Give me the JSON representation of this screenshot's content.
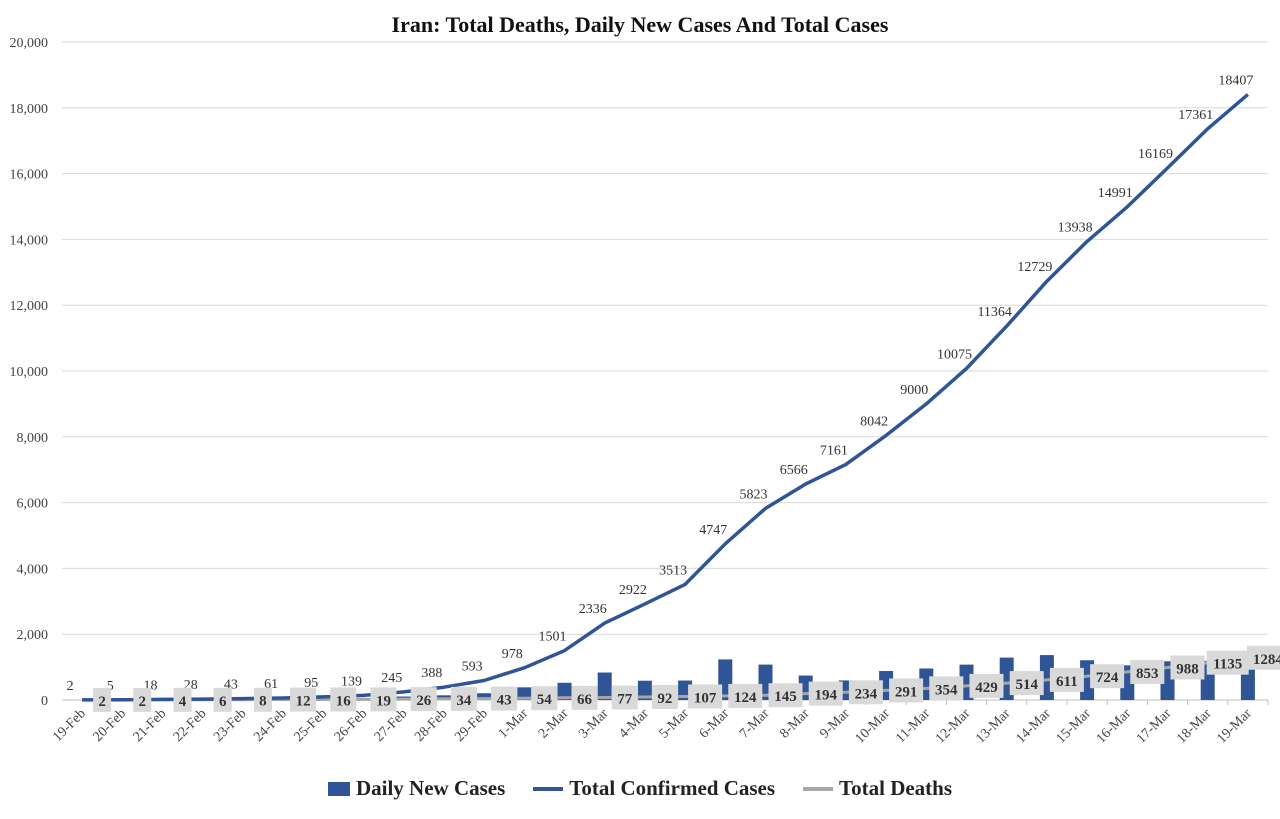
{
  "chart_data": {
    "type": "bar+line",
    "title": "Iran: Total Deaths, Daily New Cases And Total Cases",
    "categories": [
      "19-Feb",
      "20-Feb",
      "21-Feb",
      "22-Feb",
      "23-Feb",
      "24-Feb",
      "25-Feb",
      "26-Feb",
      "27-Feb",
      "28-Feb",
      "29-Feb",
      "1-Mar",
      "2-Mar",
      "3-Mar",
      "4-Mar",
      "5-Mar",
      "6-Mar",
      "7-Mar",
      "8-Mar",
      "9-Mar",
      "10-Mar",
      "11-Mar",
      "12-Mar",
      "13-Mar",
      "14-Mar",
      "15-Mar",
      "16-Mar",
      "17-Mar",
      "18-Mar",
      "19-Mar"
    ],
    "ylim": [
      0,
      20000
    ],
    "yticks": [
      0,
      2000,
      4000,
      6000,
      8000,
      10000,
      12000,
      14000,
      16000,
      18000,
      20000
    ],
    "grid": true,
    "legend_position": "bottom",
    "series": [
      {
        "name": "Daily New Cases",
        "type": "bar",
        "color": "#2F5597",
        "values": [
          2,
          3,
          13,
          10,
          15,
          18,
          34,
          44,
          106,
          143,
          205,
          385,
          523,
          835,
          586,
          591,
          1234,
          1076,
          743,
          595,
          881,
          958,
          1075,
          1289,
          1365,
          1209,
          1053,
          1178,
          1192,
          1046
        ]
      },
      {
        "name": "Total Confirmed Cases",
        "type": "line",
        "color": "#2F5597",
        "values": [
          2,
          5,
          18,
          28,
          43,
          61,
          95,
          139,
          245,
          388,
          593,
          978,
          1501,
          2336,
          2922,
          3513,
          4747,
          5823,
          6566,
          7161,
          8042,
          9000,
          10075,
          11364,
          12729,
          13938,
          14991,
          16169,
          17361,
          18407
        ]
      },
      {
        "name": "Total Deaths",
        "type": "line",
        "color": "#A6A6A6",
        "values": [
          2,
          2,
          4,
          6,
          8,
          12,
          16,
          19,
          26,
          34,
          43,
          54,
          66,
          77,
          92,
          107,
          124,
          145,
          194,
          234,
          291,
          354,
          429,
          514,
          611,
          724,
          853,
          988,
          1135,
          1284
        ]
      }
    ]
  }
}
